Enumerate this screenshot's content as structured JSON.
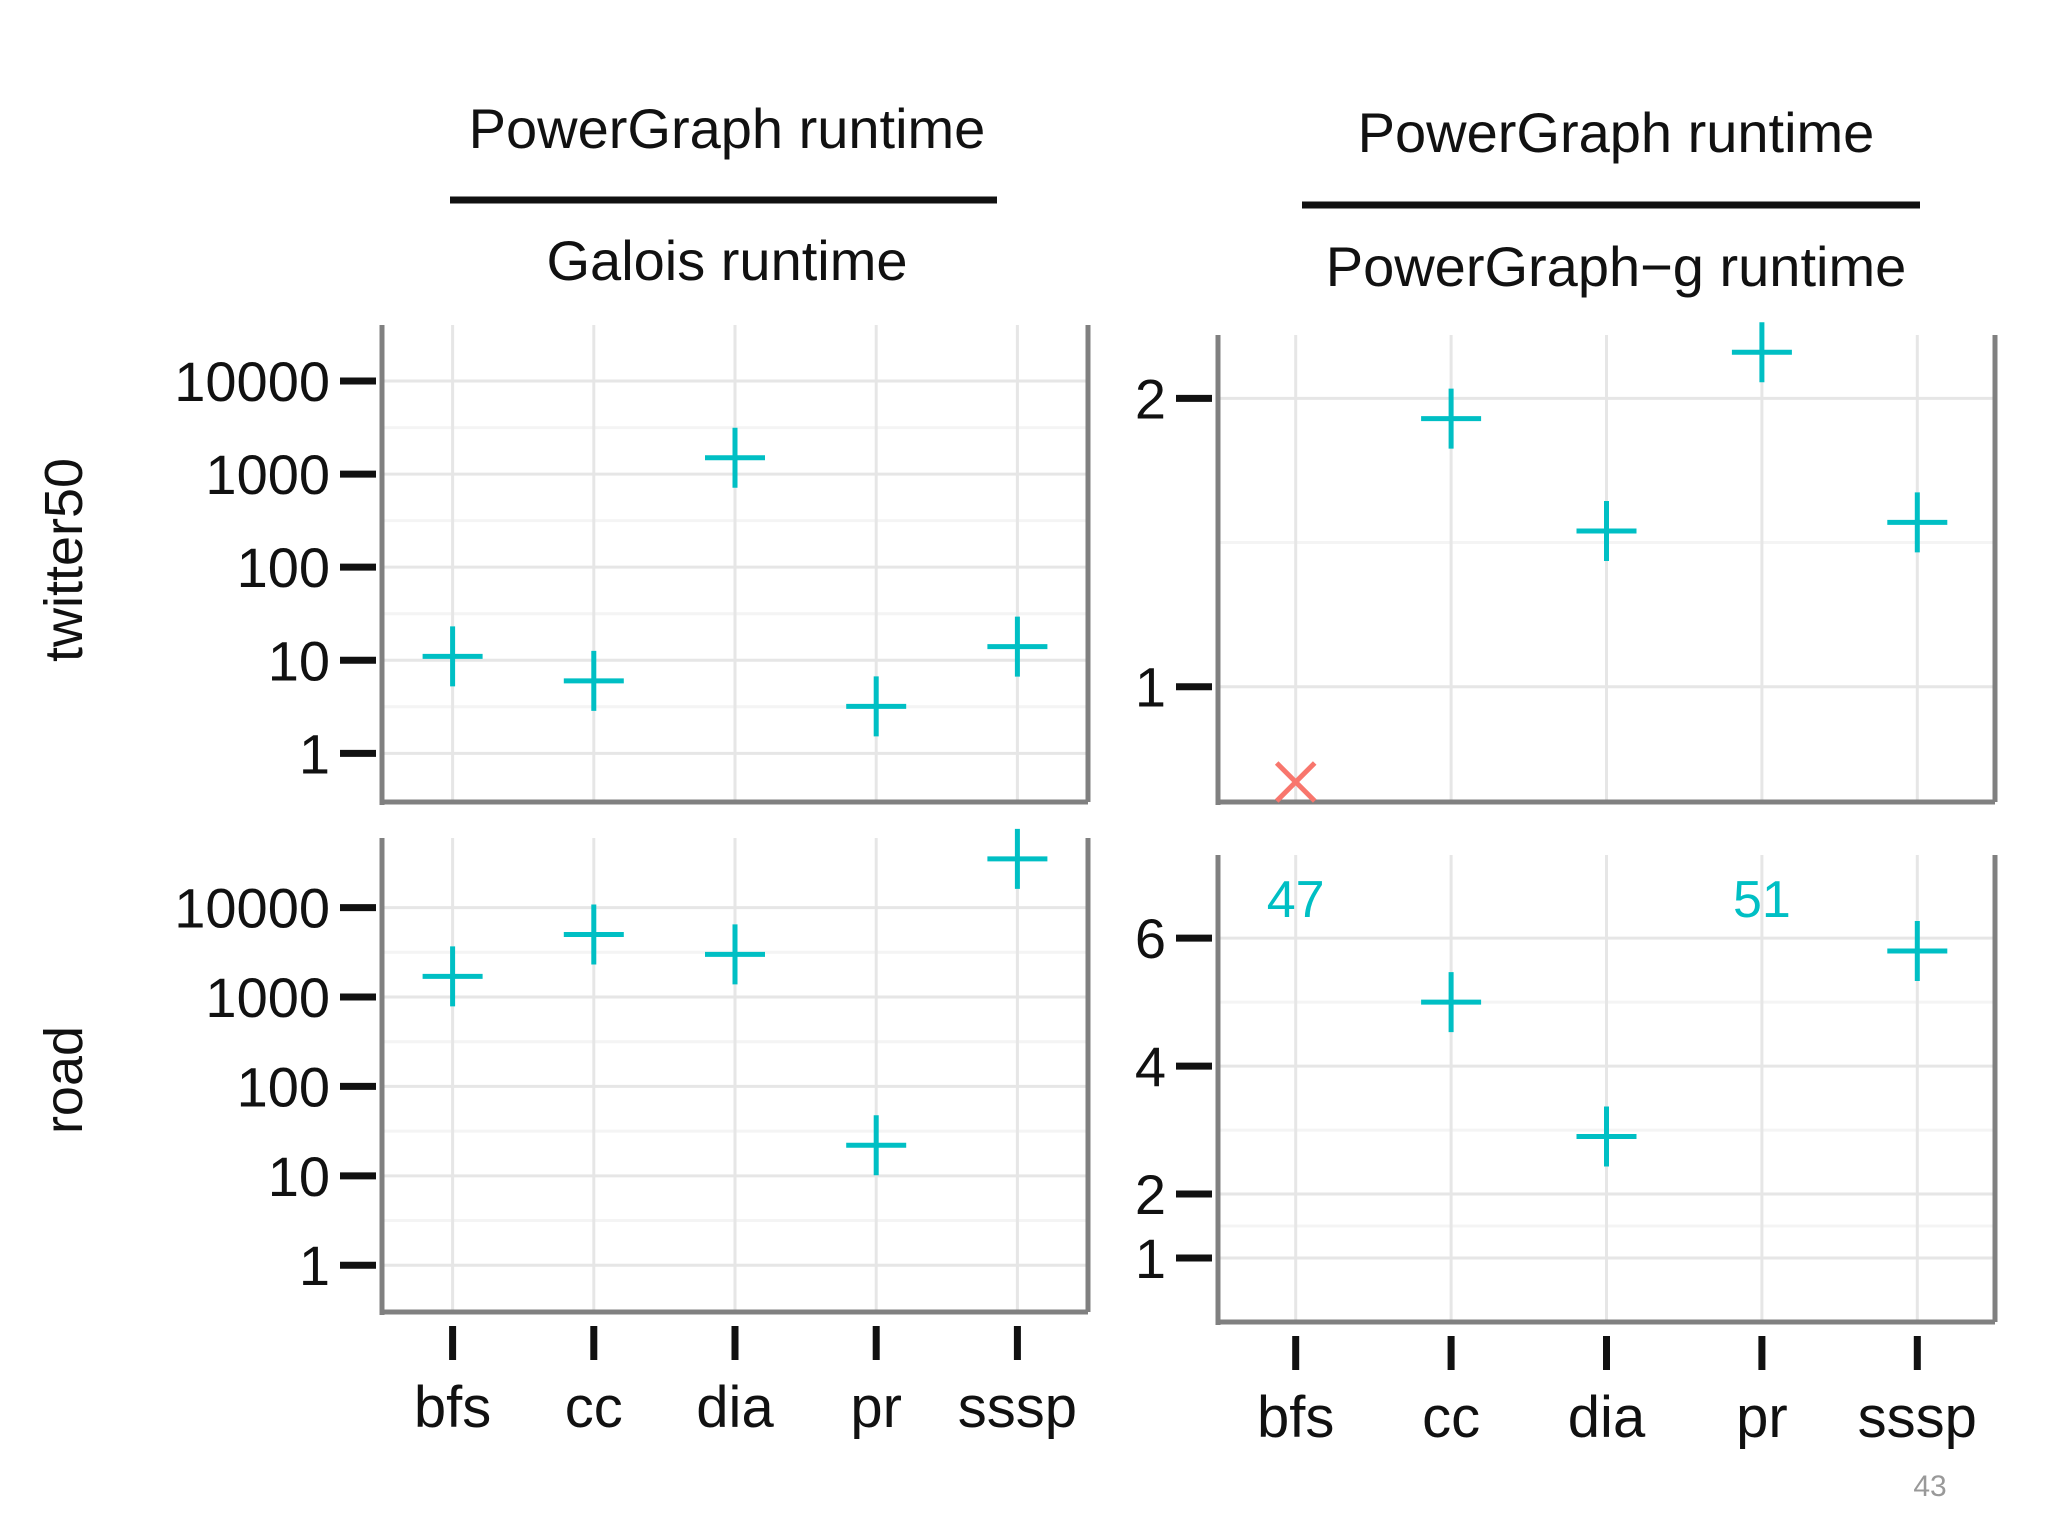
{
  "page_number": "43",
  "chart_data": {
    "type": "scatter",
    "layout": "2x2 facet grid",
    "columns": [
      {
        "numerator": "PowerGraph runtime",
        "denominator": "Galois runtime"
      },
      {
        "numerator": "PowerGraph runtime",
        "denominator": "PowerGraph−g runtime"
      }
    ],
    "rows": [
      "twitter50",
      "road"
    ],
    "categories": [
      "bfs",
      "cc",
      "dia",
      "pr",
      "sssp"
    ],
    "colors": {
      "points": "#00BFC4",
      "missing": "#F8766D",
      "frame": "#808080",
      "grid": "#E6E6E6"
    },
    "grid": true,
    "panels": [
      {
        "row": "twitter50",
        "column": 0,
        "scale": "log10",
        "yticks": [
          1,
          10,
          100,
          1000,
          10000
        ],
        "ylabels": [
          "1",
          "10",
          "100",
          "1000",
          "10000"
        ],
        "ylim": [
          0.3,
          40000
        ],
        "values": [
          11,
          6,
          1500,
          3.2,
          14
        ],
        "annotations": []
      },
      {
        "row": "twitter50",
        "column": 1,
        "scale": "linear",
        "yticks": [
          1,
          2
        ],
        "ylabels": [
          "1",
          "2"
        ],
        "ylim": [
          0.6,
          2.22
        ],
        "values": [
          null,
          1.93,
          1.54,
          2.16,
          1.57
        ],
        "missing": [
          {
            "category": "bfs",
            "marker": "x"
          }
        ],
        "annotations": []
      },
      {
        "row": "road",
        "column": 0,
        "scale": "log10",
        "yticks": [
          1,
          10,
          100,
          1000,
          10000
        ],
        "ylabels": [
          "1",
          "10",
          "100",
          "1000",
          "10000"
        ],
        "ylim": [
          0.3,
          60000
        ],
        "values": [
          1700,
          5000,
          3000,
          22,
          35000
        ],
        "annotations": []
      },
      {
        "row": "road",
        "column": 1,
        "scale": "linear",
        "yticks": [
          1,
          2,
          4,
          6
        ],
        "ylabels": [
          "1",
          "2",
          "4",
          "6"
        ],
        "ylim": [
          0.0,
          7.3
        ],
        "values": [
          null,
          5,
          2.9,
          null,
          5.8
        ],
        "annotations": [
          {
            "category": "bfs",
            "text": "47"
          },
          {
            "category": "pr",
            "text": "51"
          }
        ]
      }
    ]
  }
}
